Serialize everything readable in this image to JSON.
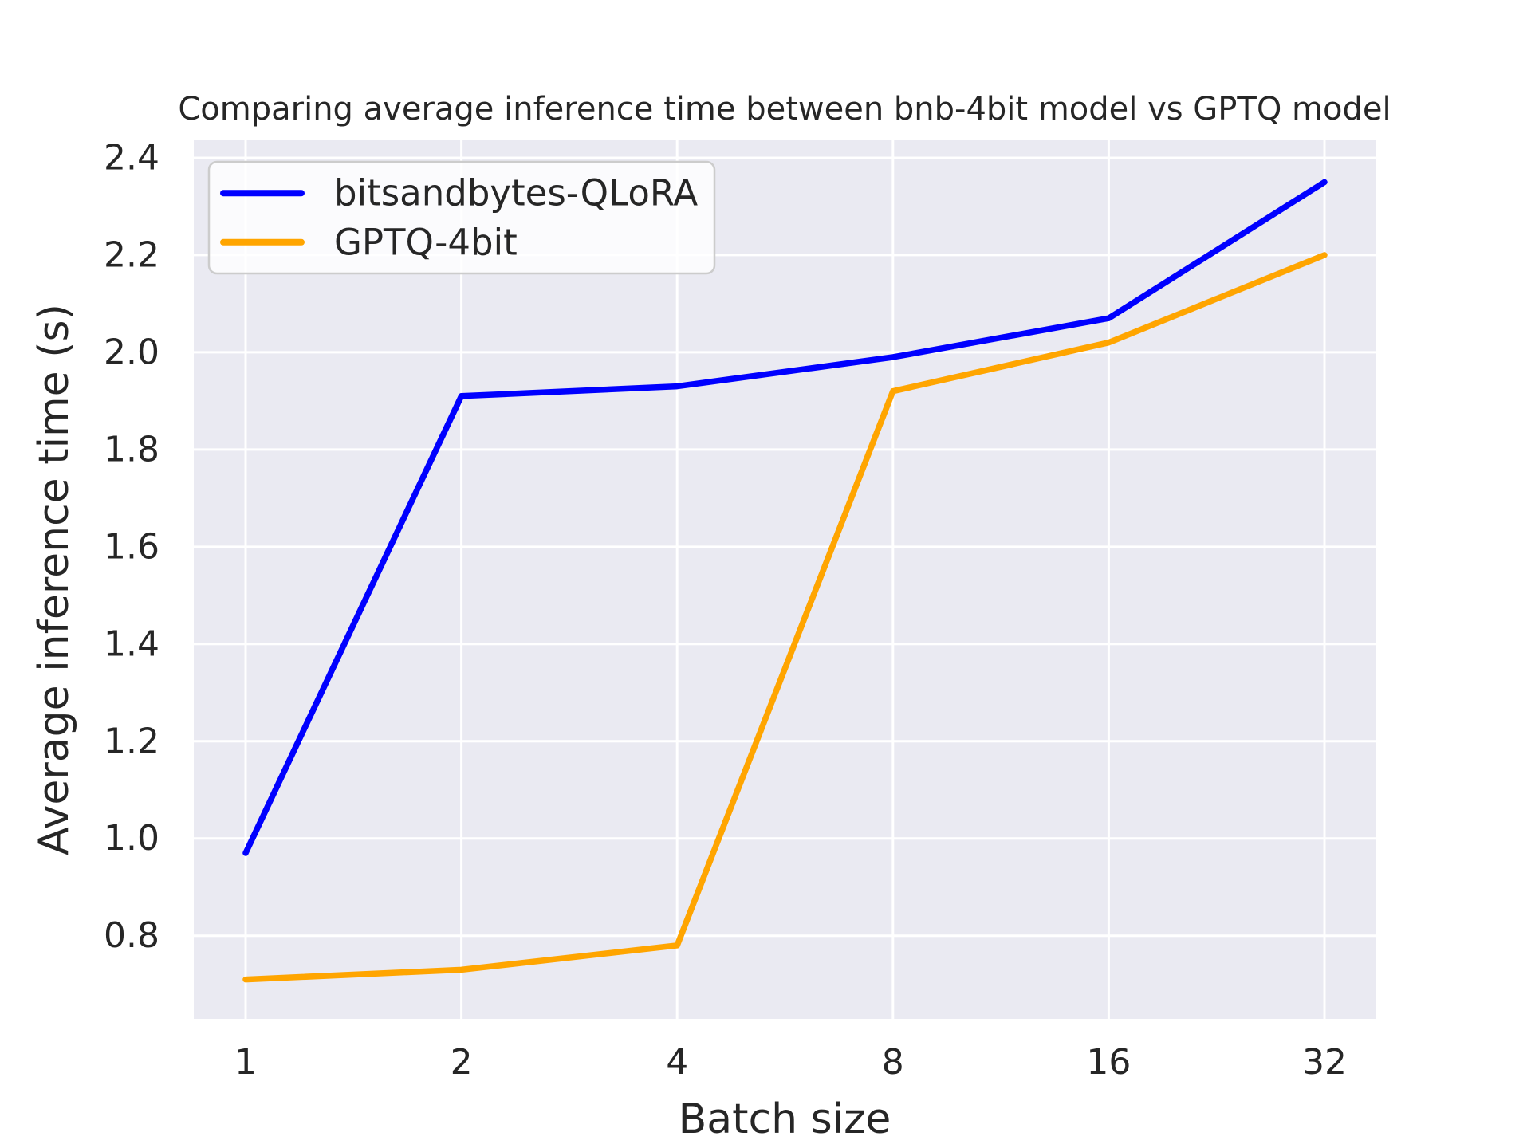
{
  "figure": {
    "background": "#ffffff",
    "plot_background": "#eaeaf2",
    "grid_color": "#ffffff",
    "text_color": "#262626",
    "legend_face": "rgba(255,255,255,0.8)",
    "legend_edge": "#cccccc"
  },
  "chart_data": {
    "type": "line",
    "title": "Comparing average inference time between bnb-4bit model vs GPTQ model",
    "xlabel": "Batch size",
    "ylabel": "Average inference time (s)",
    "x_scale": "log2",
    "categories": [
      1,
      2,
      4,
      8,
      16,
      32
    ],
    "series": [
      {
        "name": "bitsandbytes-QLoRA",
        "color": "#0000ff",
        "values": [
          0.97,
          1.91,
          1.93,
          1.99,
          2.07,
          2.35
        ]
      },
      {
        "name": "GPTQ-4bit",
        "color": "#ffa500",
        "values": [
          0.71,
          0.73,
          0.78,
          1.92,
          2.02,
          2.2
        ]
      }
    ],
    "ylim": [
      0.629,
      2.436
    ],
    "yticks": [
      0.8,
      1.0,
      1.2,
      1.4,
      1.6,
      1.8,
      2.0,
      2.2,
      2.4
    ],
    "ytick_labels": [
      "0.8",
      "1.0",
      "1.2",
      "1.4",
      "1.6",
      "1.8",
      "2.0",
      "2.2",
      "2.4"
    ],
    "grid": true,
    "legend_position": "upper left"
  }
}
